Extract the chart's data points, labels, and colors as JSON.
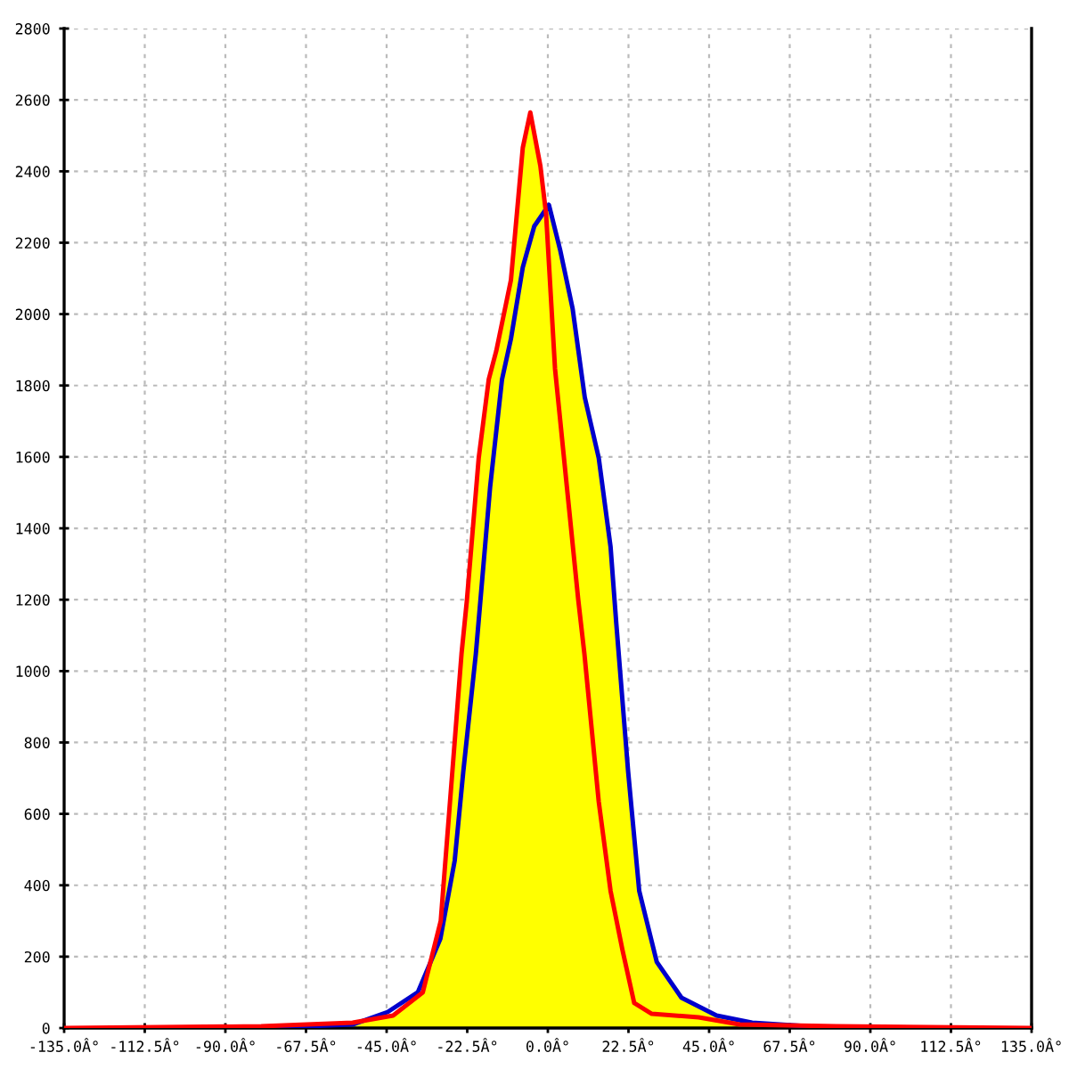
{
  "chart_data": {
    "type": "line",
    "xlim": [
      -135,
      135
    ],
    "ylim": [
      0,
      2800
    ],
    "xticks": [
      {
        "value": -135,
        "label": "-135.0Â°"
      },
      {
        "value": -112.5,
        "label": "-112.5Â°"
      },
      {
        "value": -90,
        "label": "-90.0Â°"
      },
      {
        "value": -67.5,
        "label": "-67.5Â°"
      },
      {
        "value": -45,
        "label": "-45.0Â°"
      },
      {
        "value": -22.5,
        "label": "-22.5Â°"
      },
      {
        "value": 0,
        "label": "0.0Â°"
      },
      {
        "value": 22.5,
        "label": "22.5Â°"
      },
      {
        "value": 45,
        "label": "45.0Â°"
      },
      {
        "value": 67.5,
        "label": "67.5Â°"
      },
      {
        "value": 90,
        "label": "90.0Â°"
      },
      {
        "value": 112.5,
        "label": "112.5Â°"
      },
      {
        "value": 135,
        "label": "135.0Â°"
      }
    ],
    "yticks": [
      0,
      200,
      400,
      600,
      800,
      1000,
      1200,
      1400,
      1600,
      1800,
      2000,
      2200,
      2400,
      2600,
      2800
    ],
    "grid": true,
    "line_style": "solid",
    "marker": "none",
    "series": [
      {
        "type": "area",
        "color": "#ffff00",
        "x": [
          -80,
          -54.5,
          -43.2,
          -34.9,
          -29.9,
          -24.1,
          -22.6,
          -19.3,
          -16.5,
          -14.4,
          -10.3,
          -7.0,
          -4.9,
          -2.1,
          -0.5,
          0.3,
          3.4,
          6.9,
          10.3,
          14.2,
          17.5,
          19.1,
          22.4,
          25.5,
          30.4,
          37.3,
          47.1,
          57.0,
          80.5
        ],
        "values": [
          5,
          15,
          35,
          100,
          300,
          1048,
          1198,
          1597,
          1817,
          1897,
          2096,
          2466,
          2565,
          2416,
          2281,
          2306,
          2181,
          2016,
          1767,
          1597,
          1348,
          1133,
          719,
          384,
          185,
          85,
          35,
          15,
          5
        ]
      },
      {
        "color": "#0000cc",
        "x": [
          -80,
          -54.5,
          -44.7,
          -36.3,
          -30.0,
          -26.0,
          -23.6,
          -20.1,
          -16.1,
          -12.8,
          -10.3,
          -7.0,
          -3.8,
          0.3,
          3.4,
          6.9,
          10.3,
          14.2,
          17.5,
          19.1,
          22.4,
          25.5,
          30.4,
          37.3,
          47.1,
          57.0,
          80.5
        ],
        "values": [
          0,
          10,
          45,
          100,
          250,
          469,
          719,
          1048,
          1517,
          1817,
          1931,
          2131,
          2246,
          2306,
          2181,
          2016,
          1767,
          1597,
          1348,
          1133,
          719,
          384,
          185,
          85,
          35,
          15,
          0
        ]
      },
      {
        "color": "#ff0000",
        "x": [
          -135,
          -80,
          -54.5,
          -43.2,
          -34.9,
          -29.9,
          -24.1,
          -22.6,
          -19.3,
          -16.5,
          -14.4,
          -10.3,
          -7.0,
          -4.9,
          -2.1,
          -0.5,
          2.0,
          5.3,
          8.5,
          10.2,
          14.2,
          17.5,
          20.8,
          24.1,
          29.0,
          42.1,
          53.5,
          80.5,
          135
        ],
        "values": [
          0,
          5,
          15,
          35,
          100,
          300,
          1048,
          1198,
          1597,
          1817,
          1897,
          2096,
          2466,
          2565,
          2416,
          2281,
          1847,
          1517,
          1198,
          1048,
          634,
          384,
          220,
          70,
          40,
          30,
          10,
          5,
          0
        ]
      }
    ]
  }
}
